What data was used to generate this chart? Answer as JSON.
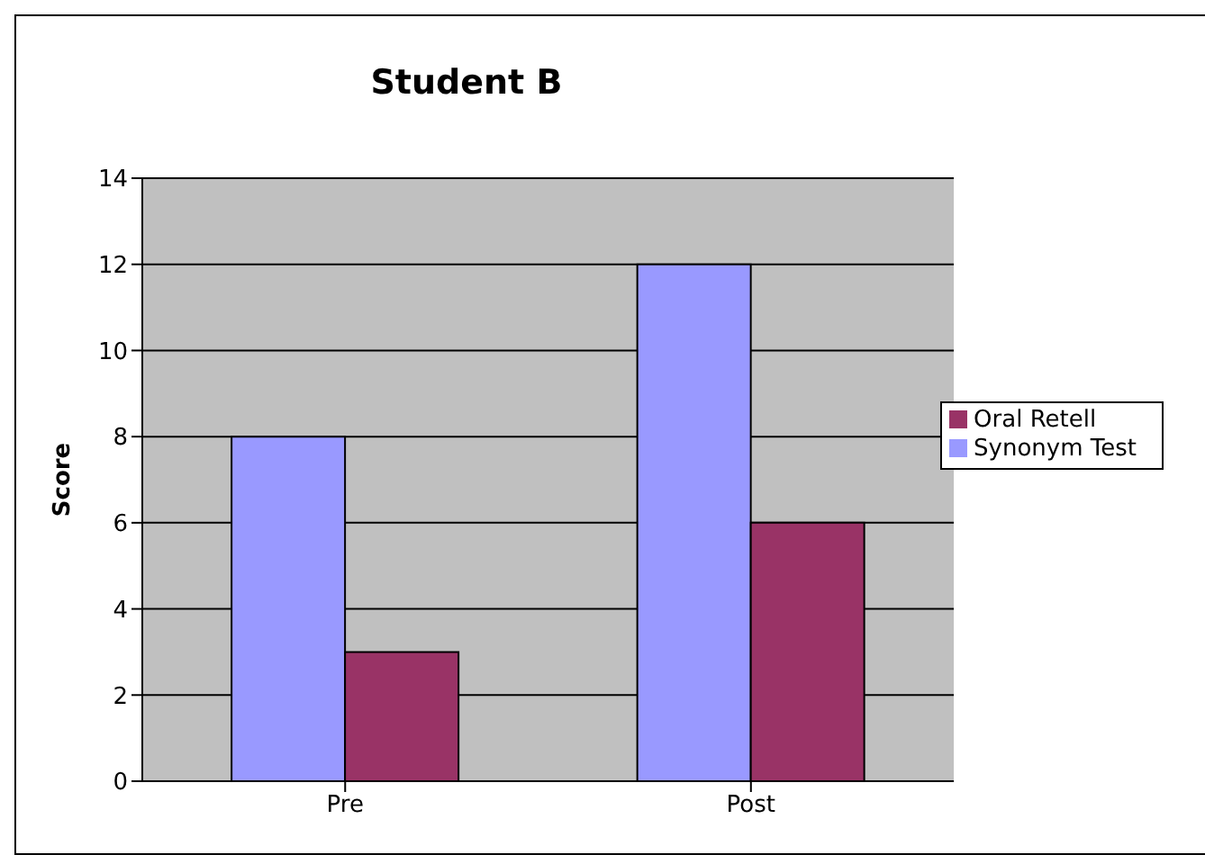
{
  "chart_data": {
    "type": "bar",
    "title": "Student B",
    "ylabel": "Score",
    "categories": [
      "Pre",
      "Post"
    ],
    "series": [
      {
        "name": "Synonym Test",
        "color": "#9999ff",
        "values": [
          8,
          12
        ]
      },
      {
        "name": "Oral Retell",
        "color": "#993366",
        "values": [
          3,
          6
        ]
      }
    ],
    "ylim": [
      0,
      14
    ],
    "yticks": [
      0,
      2,
      4,
      6,
      8,
      10,
      12,
      14
    ],
    "grid": "y",
    "legend": "right"
  }
}
